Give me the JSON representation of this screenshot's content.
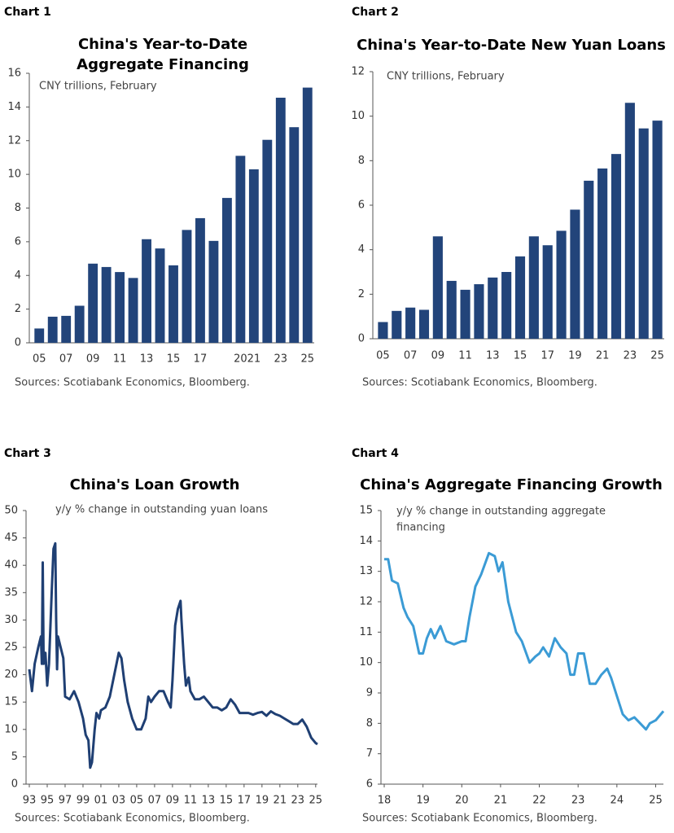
{
  "chart_data": [
    {
      "label": "Chart 1",
      "type": "bar",
      "title": [
        "China's Year-to-Date",
        "Aggregate Financing"
      ],
      "subtitle": [
        "CNY trillions, February"
      ],
      "source": "Sources: Scotiabank Economics, Bloomberg.",
      "categories": [
        "05",
        null,
        "07",
        null,
        "09",
        null,
        "11",
        null,
        "13",
        null,
        "15",
        null,
        "17",
        null,
        null,
        "20",
        "21",
        null,
        "23",
        null,
        "25"
      ],
      "values": [
        0.85,
        1.55,
        1.6,
        2.2,
        4.7,
        4.5,
        4.2,
        3.85,
        6.15,
        5.6,
        4.6,
        6.7,
        7.4,
        6.05,
        8.6,
        11.1,
        10.3,
        12.05,
        14.55,
        12.8,
        15.15
      ],
      "color": "#22447a",
      "ylim": [
        0,
        16
      ],
      "yticks": [
        0,
        2,
        4,
        6,
        8,
        10,
        12,
        14,
        16
      ]
    },
    {
      "label": "Chart 2",
      "type": "bar",
      "title": [
        "China's Year-to-Date New Yuan Loans"
      ],
      "subtitle": [
        "CNY trillions, February"
      ],
      "source": "Sources: Scotiabank Economics, Bloomberg.",
      "categories": [
        "05",
        null,
        "07",
        null,
        "09",
        null,
        "11",
        null,
        "13",
        null,
        "15",
        null,
        "17",
        null,
        "19",
        null,
        "21",
        null,
        "23",
        null,
        "25"
      ],
      "values": [
        0.75,
        1.25,
        1.4,
        1.3,
        4.6,
        2.6,
        2.2,
        2.45,
        2.75,
        3.0,
        3.7,
        4.6,
        4.2,
        4.85,
        5.8,
        7.1,
        7.65,
        8.3,
        10.6,
        9.45,
        9.8
      ],
      "color": "#22447a",
      "ylim": [
        0,
        12
      ],
      "yticks": [
        0,
        2,
        4,
        6,
        8,
        10,
        12
      ]
    },
    {
      "label": "Chart 3",
      "type": "line",
      "title": [
        "China's  Loan Growth"
      ],
      "subtitle": [
        "y/y % change in outstanding yuan loans"
      ],
      "source": "Sources: Scotiabank Economics, Bloomberg.",
      "x": [
        1993.0,
        1993.3,
        1993.6,
        1994.0,
        1994.3,
        1994.4,
        1994.5,
        1994.6,
        1994.8,
        1995.0,
        1995.2,
        1995.5,
        1995.7,
        1995.9,
        1996.0,
        1996.1,
        1996.2,
        1996.5,
        1996.8,
        1997.0,
        1997.5,
        1998.0,
        1998.5,
        1999.0,
        1999.3,
        1999.6,
        1999.8,
        2000.0,
        2000.3,
        2000.5,
        2000.8,
        2001.0,
        2001.5,
        2002.0,
        2002.5,
        2003.0,
        2003.3,
        2003.6,
        2004.0,
        2004.5,
        2005.0,
        2005.5,
        2006.0,
        2006.3,
        2006.6,
        2007.0,
        2007.5,
        2008.0,
        2008.5,
        2008.8,
        2009.0,
        2009.3,
        2009.6,
        2009.9,
        2010.0,
        2010.3,
        2010.5,
        2010.8,
        2011.0,
        2011.5,
        2012.0,
        2012.5,
        2013.0,
        2013.5,
        2014.0,
        2014.5,
        2015.0,
        2015.5,
        2016.0,
        2016.5,
        2017.0,
        2017.5,
        2018.0,
        2018.5,
        2019.0,
        2019.5,
        2020.0,
        2020.5,
        2021.0,
        2021.5,
        2022.0,
        2022.5,
        2023.0,
        2023.5,
        2024.0,
        2024.5,
        2025.0,
        2025.2
      ],
      "values": [
        21,
        17,
        22,
        25,
        27,
        22,
        40.5,
        22,
        24,
        18,
        22,
        35,
        43,
        44,
        30,
        21,
        27,
        25,
        23,
        16,
        15.5,
        17,
        15,
        12,
        9,
        8,
        3,
        4,
        10,
        13,
        12,
        13.5,
        14,
        16,
        20,
        24,
        23,
        19,
        15,
        12,
        10,
        10,
        12,
        16,
        15,
        16,
        17,
        17,
        15,
        14,
        19,
        29,
        32,
        33.5,
        30,
        22,
        18,
        19.5,
        17,
        15.5,
        15.5,
        16,
        15,
        14,
        14,
        13.5,
        14,
        15.5,
        14.5,
        13,
        13,
        13,
        12.7,
        13,
        13.2,
        12.5,
        13.3,
        12.8,
        12.5,
        12,
        11.5,
        11,
        11,
        11.8,
        10.5,
        8.5,
        7.5,
        7.3
      ],
      "color": "#1f3f73",
      "xlim": [
        1993,
        2025.2
      ],
      "ylim": [
        0,
        50
      ],
      "yticks": [
        0,
        5,
        10,
        15,
        20,
        25,
        30,
        35,
        40,
        45,
        50
      ],
      "xticks": [
        {
          "value": 1993,
          "label": "93"
        },
        {
          "value": 1995,
          "label": "95"
        },
        {
          "value": 1997,
          "label": "97"
        },
        {
          "value": 1999,
          "label": "99"
        },
        {
          "value": 2001,
          "label": "01"
        },
        {
          "value": 2003,
          "label": "03"
        },
        {
          "value": 2005,
          "label": "05"
        },
        {
          "value": 2007,
          "label": "07"
        },
        {
          "value": 2009,
          "label": "09"
        },
        {
          "value": 2011,
          "label": "11"
        },
        {
          "value": 2013,
          "label": "13"
        },
        {
          "value": 2015,
          "label": "15"
        },
        {
          "value": 2017,
          "label": "17"
        },
        {
          "value": 2019,
          "label": "19"
        },
        {
          "value": 2021,
          "label": "21"
        },
        {
          "value": 2023,
          "label": "23"
        },
        {
          "value": 2025,
          "label": "25"
        }
      ]
    },
    {
      "label": "Chart 4",
      "type": "line",
      "title": [
        "China's Aggregate Financing Growth"
      ],
      "subtitle": [
        "y/y % change in outstanding aggregate",
        "financing"
      ],
      "source": "Sources: Scotiabank Economics, Bloomberg.",
      "x": [
        2018.0,
        2018.1,
        2018.2,
        2018.35,
        2018.5,
        2018.6,
        2018.75,
        2018.9,
        2019.0,
        2019.1,
        2019.2,
        2019.3,
        2019.45,
        2019.6,
        2019.8,
        2020.0,
        2020.1,
        2020.2,
        2020.35,
        2020.5,
        2020.7,
        2020.85,
        2020.95,
        2021.05,
        2021.2,
        2021.4,
        2021.55,
        2021.75,
        2021.9,
        2022.0,
        2022.1,
        2022.25,
        2022.4,
        2022.55,
        2022.7,
        2022.8,
        2022.9,
        2023.0,
        2023.15,
        2023.3,
        2023.45,
        2023.6,
        2023.75,
        2023.85,
        2024.0,
        2024.15,
        2024.3,
        2024.45,
        2024.6,
        2024.75,
        2024.85,
        2025.0,
        2025.2
      ],
      "values": [
        13.4,
        13.4,
        12.7,
        12.6,
        11.8,
        11.5,
        11.2,
        10.3,
        10.3,
        10.8,
        11.1,
        10.8,
        11.2,
        10.7,
        10.6,
        10.7,
        10.7,
        11.5,
        12.5,
        12.9,
        13.6,
        13.5,
        13.0,
        13.3,
        12.0,
        11.0,
        10.7,
        10.0,
        10.2,
        10.3,
        10.5,
        10.2,
        10.8,
        10.5,
        10.3,
        9.6,
        9.6,
        10.3,
        10.3,
        9.3,
        9.3,
        9.6,
        9.8,
        9.5,
        8.9,
        8.3,
        8.1,
        8.2,
        8.0,
        7.8,
        8.0,
        8.1,
        8.4
      ],
      "color": "#3b9bd5",
      "xlim": [
        2018,
        2025.2
      ],
      "ylim": [
        6,
        15
      ],
      "yticks": [
        6,
        7,
        8,
        9,
        10,
        11,
        12,
        13,
        14,
        15
      ],
      "xticks": [
        {
          "value": 2018,
          "label": "18"
        },
        {
          "value": 2019,
          "label": "19"
        },
        {
          "value": 2020,
          "label": "20"
        },
        {
          "value": 2021,
          "label": "21"
        },
        {
          "value": 2022,
          "label": "22"
        },
        {
          "value": 2023,
          "label": "23"
        },
        {
          "value": 2024,
          "label": "24"
        },
        {
          "value": 2025,
          "label": "25"
        }
      ]
    }
  ]
}
